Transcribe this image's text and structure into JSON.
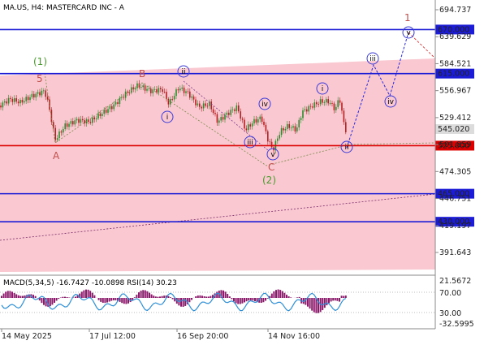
{
  "header": {
    "symbol_line": "MA.US, H4:  MASTERCARD INC - A"
  },
  "indicator": {
    "label": "MACD(5,34,5) -16.7427 -10.0898 RSI(14) 30.23",
    "axis_labels": [
      "21.5672",
      "70.00",
      "30.00",
      "-32.5995"
    ]
  },
  "chart_data": {
    "type": "line",
    "title": "MA.US, H4:  MASTERCARD INC - A",
    "x_tick_labels": [
      "14 May 2025",
      "17 Jul 12:00",
      "16 Sep 20:00",
      "14 Nov 16:00"
    ],
    "y_tick_labels": [
      "694.737",
      "639.629",
      "584.521",
      "556.967",
      "529.412",
      "501.859",
      "474.305",
      "446.751",
      "419.197",
      "391.643"
    ],
    "ylim": [
      374,
      712
    ],
    "price_tag": "545.020",
    "levels": [
      {
        "label": "670.000",
        "value": 670,
        "color": "#1c1cd6"
      },
      {
        "label": "615.000",
        "value": 615,
        "color": "#1c1cd6"
      },
      {
        "label": "525.000",
        "value": 525,
        "color": "#dd0000"
      },
      {
        "label": "465.000",
        "value": 465,
        "color": "#1c1cd6"
      },
      {
        "label": "430.000",
        "value": 430,
        "color": "#1c1cd6"
      }
    ],
    "wave_labels": [
      {
        "text": "(1)",
        "color": "#4a9b2e"
      },
      {
        "text": "5",
        "color": "#c0504d"
      },
      {
        "text": "A",
        "color": "#c0504d"
      },
      {
        "text": "B",
        "color": "#c0504d"
      },
      {
        "text": "C",
        "color": "#c0504d"
      },
      {
        "text": "(2)",
        "color": "#4a9b2e"
      },
      {
        "text": "1",
        "color": "#c0504d"
      },
      {
        "text": "i",
        "color": "#3b3bd8"
      },
      {
        "text": "ii",
        "color": "#3b3bd8"
      },
      {
        "text": "iii",
        "color": "#3b3bd8"
      },
      {
        "text": "iv",
        "color": "#3b3bd8"
      },
      {
        "text": "v",
        "color": "#3b3bd8"
      }
    ],
    "colors": {
      "channel_fill": "#f9c8d0",
      "candle_up": "#2e8b2e",
      "candle_down": "#b22222",
      "macd_hist": "#8b1a6b",
      "rsi_line": "#2f8fd6"
    },
    "grid": false
  }
}
